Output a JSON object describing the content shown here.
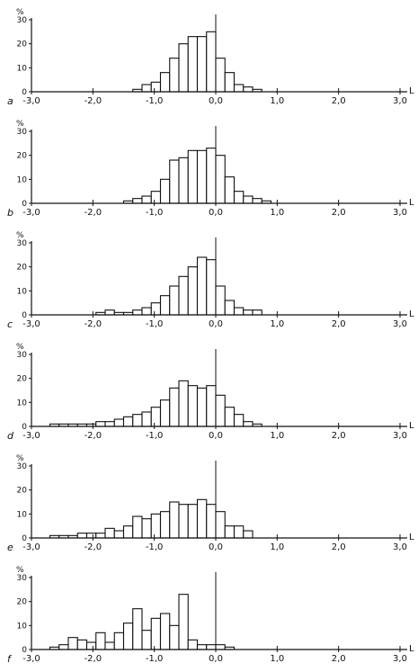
{
  "chart_data": [
    {
      "type": "bar",
      "panel": "a",
      "unit": "%",
      "axis_end": "L",
      "bin_width": 0.15,
      "xlim": [
        -3.0,
        3.0
      ],
      "ylim": [
        0,
        30
      ],
      "yticks": [
        "0",
        "10",
        "20",
        "30"
      ],
      "xticks": [
        "-3,0",
        "-2,0",
        "-1,0",
        "0,0",
        "1,0",
        "2,0",
        "3,0"
      ],
      "bins": [
        {
          "start": -1.35,
          "value": 1
        },
        {
          "start": -1.2,
          "value": 3
        },
        {
          "start": -1.05,
          "value": 4
        },
        {
          "start": -0.9,
          "value": 8
        },
        {
          "start": -0.75,
          "value": 14
        },
        {
          "start": -0.6,
          "value": 20
        },
        {
          "start": -0.45,
          "value": 23
        },
        {
          "start": -0.3,
          "value": 23
        },
        {
          "start": -0.15,
          "value": 25
        },
        {
          "start": 0.0,
          "value": 14
        },
        {
          "start": 0.15,
          "value": 8
        },
        {
          "start": 0.3,
          "value": 3
        },
        {
          "start": 0.45,
          "value": 2
        },
        {
          "start": 0.6,
          "value": 1
        }
      ]
    },
    {
      "type": "bar",
      "panel": "b",
      "unit": "%",
      "axis_end": "L",
      "bin_width": 0.15,
      "xlim": [
        -3.0,
        3.0
      ],
      "ylim": [
        0,
        30
      ],
      "yticks": [
        "0",
        "10",
        "20",
        "30"
      ],
      "xticks": [
        "-3,0",
        "-2,0",
        "-1,0",
        "0,0",
        "1,0",
        "2,0",
        "3,0"
      ],
      "bins": [
        {
          "start": -1.5,
          "value": 1
        },
        {
          "start": -1.35,
          "value": 2
        },
        {
          "start": -1.2,
          "value": 3
        },
        {
          "start": -1.05,
          "value": 5
        },
        {
          "start": -0.9,
          "value": 10
        },
        {
          "start": -0.75,
          "value": 18
        },
        {
          "start": -0.6,
          "value": 19
        },
        {
          "start": -0.45,
          "value": 22
        },
        {
          "start": -0.3,
          "value": 22
        },
        {
          "start": -0.15,
          "value": 23
        },
        {
          "start": 0.0,
          "value": 20
        },
        {
          "start": 0.15,
          "value": 11
        },
        {
          "start": 0.3,
          "value": 5
        },
        {
          "start": 0.45,
          "value": 3
        },
        {
          "start": 0.6,
          "value": 2
        },
        {
          "start": 0.75,
          "value": 1
        }
      ]
    },
    {
      "type": "bar",
      "panel": "c",
      "unit": "%",
      "axis_end": "L",
      "bin_width": 0.15,
      "xlim": [
        -3.0,
        3.0
      ],
      "ylim": [
        0,
        30
      ],
      "yticks": [
        "0",
        "10",
        "20",
        "30"
      ],
      "xticks": [
        "-3,0",
        "-2,0",
        "-1,0",
        "0,0",
        "1,0",
        "2,0",
        "3,0"
      ],
      "bins": [
        {
          "start": -1.95,
          "value": 1
        },
        {
          "start": -1.8,
          "value": 2
        },
        {
          "start": -1.65,
          "value": 1
        },
        {
          "start": -1.5,
          "value": 1
        },
        {
          "start": -1.35,
          "value": 2
        },
        {
          "start": -1.2,
          "value": 3
        },
        {
          "start": -1.05,
          "value": 5
        },
        {
          "start": -0.9,
          "value": 8
        },
        {
          "start": -0.75,
          "value": 12
        },
        {
          "start": -0.6,
          "value": 16
        },
        {
          "start": -0.45,
          "value": 20
        },
        {
          "start": -0.3,
          "value": 24
        },
        {
          "start": -0.15,
          "value": 23
        },
        {
          "start": 0.0,
          "value": 12
        },
        {
          "start": 0.15,
          "value": 6
        },
        {
          "start": 0.3,
          "value": 3
        },
        {
          "start": 0.45,
          "value": 2
        },
        {
          "start": 0.6,
          "value": 2
        }
      ]
    },
    {
      "type": "bar",
      "panel": "d",
      "unit": "%",
      "axis_end": "L",
      "bin_width": 0.15,
      "xlim": [
        -3.0,
        3.0
      ],
      "ylim": [
        0,
        30
      ],
      "yticks": [
        "0",
        "10",
        "20",
        "30"
      ],
      "xticks": [
        "-3,0",
        "-2,0",
        "-1,0",
        "0,0",
        "1,0",
        "2,0",
        "3,0"
      ],
      "bins": [
        {
          "start": -2.7,
          "value": 1
        },
        {
          "start": -2.55,
          "value": 1
        },
        {
          "start": -2.4,
          "value": 1
        },
        {
          "start": -2.25,
          "value": 1
        },
        {
          "start": -2.1,
          "value": 1
        },
        {
          "start": -1.95,
          "value": 2
        },
        {
          "start": -1.8,
          "value": 2
        },
        {
          "start": -1.65,
          "value": 3
        },
        {
          "start": -1.5,
          "value": 4
        },
        {
          "start": -1.35,
          "value": 5
        },
        {
          "start": -1.2,
          "value": 6
        },
        {
          "start": -1.05,
          "value": 8
        },
        {
          "start": -0.9,
          "value": 11
        },
        {
          "start": -0.75,
          "value": 16
        },
        {
          "start": -0.6,
          "value": 19
        },
        {
          "start": -0.45,
          "value": 17
        },
        {
          "start": -0.3,
          "value": 16
        },
        {
          "start": -0.15,
          "value": 17
        },
        {
          "start": 0.0,
          "value": 13
        },
        {
          "start": 0.15,
          "value": 8
        },
        {
          "start": 0.3,
          "value": 5
        },
        {
          "start": 0.45,
          "value": 2
        },
        {
          "start": 0.6,
          "value": 1
        }
      ]
    },
    {
      "type": "bar",
      "panel": "e",
      "unit": "%",
      "axis_end": "L",
      "bin_width": 0.15,
      "xlim": [
        -3.0,
        3.0
      ],
      "ylim": [
        0,
        30
      ],
      "yticks": [
        "0",
        "10",
        "20",
        "30"
      ],
      "xticks": [
        "-3,0",
        "-2,0",
        "-1,0",
        "0,0",
        "1,0",
        "2,0",
        "3,0"
      ],
      "bins": [
        {
          "start": -2.7,
          "value": 1
        },
        {
          "start": -2.55,
          "value": 1
        },
        {
          "start": -2.4,
          "value": 1
        },
        {
          "start": -2.25,
          "value": 2
        },
        {
          "start": -2.1,
          "value": 2
        },
        {
          "start": -1.95,
          "value": 2
        },
        {
          "start": -1.8,
          "value": 4
        },
        {
          "start": -1.65,
          "value": 3
        },
        {
          "start": -1.5,
          "value": 5
        },
        {
          "start": -1.35,
          "value": 9
        },
        {
          "start": -1.2,
          "value": 8
        },
        {
          "start": -1.05,
          "value": 10
        },
        {
          "start": -0.9,
          "value": 11
        },
        {
          "start": -0.75,
          "value": 15
        },
        {
          "start": -0.6,
          "value": 14
        },
        {
          "start": -0.45,
          "value": 14
        },
        {
          "start": -0.3,
          "value": 16
        },
        {
          "start": -0.15,
          "value": 14
        },
        {
          "start": 0.0,
          "value": 11
        },
        {
          "start": 0.15,
          "value": 5
        },
        {
          "start": 0.3,
          "value": 5
        },
        {
          "start": 0.45,
          "value": 3
        }
      ]
    },
    {
      "type": "bar",
      "panel": "f",
      "unit": "%",
      "axis_end": "L",
      "bin_width": 0.15,
      "xlim": [
        -3.0,
        3.0
      ],
      "ylim": [
        0,
        30
      ],
      "yticks": [
        "0",
        "10",
        "20",
        "30"
      ],
      "xticks": [
        "-3,0",
        "-2,0",
        "-1,0",
        "0,0",
        "1,0",
        "2,0",
        "3,0"
      ],
      "bins": [
        {
          "start": -2.7,
          "value": 1
        },
        {
          "start": -2.55,
          "value": 2
        },
        {
          "start": -2.4,
          "value": 5
        },
        {
          "start": -2.25,
          "value": 4
        },
        {
          "start": -2.1,
          "value": 3
        },
        {
          "start": -1.95,
          "value": 7
        },
        {
          "start": -1.8,
          "value": 3
        },
        {
          "start": -1.65,
          "value": 7
        },
        {
          "start": -1.5,
          "value": 11
        },
        {
          "start": -1.35,
          "value": 17
        },
        {
          "start": -1.2,
          "value": 8
        },
        {
          "start": -1.05,
          "value": 13
        },
        {
          "start": -0.9,
          "value": 15
        },
        {
          "start": -0.75,
          "value": 10
        },
        {
          "start": -0.6,
          "value": 23
        },
        {
          "start": -0.45,
          "value": 4
        },
        {
          "start": -0.3,
          "value": 2
        },
        {
          "start": -0.15,
          "value": 2
        },
        {
          "start": 0.0,
          "value": 2
        },
        {
          "start": 0.15,
          "value": 1
        }
      ]
    }
  ]
}
